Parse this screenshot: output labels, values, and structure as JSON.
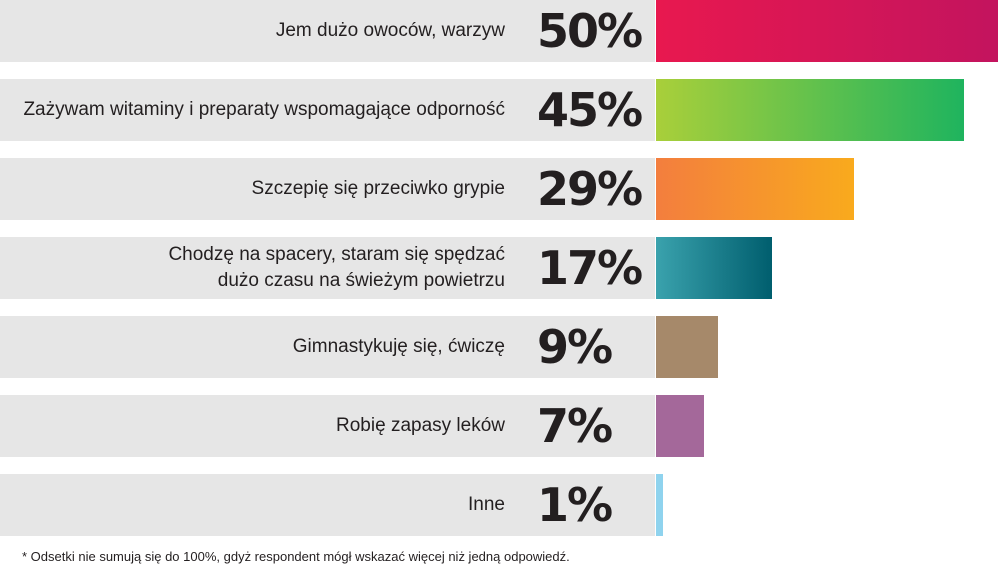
{
  "chart_data": {
    "type": "bar",
    "orientation": "horizontal",
    "categories": [
      "Jem dużo owoców, warzyw",
      "Zażywam witaminy i preparaty wspomagające odporność",
      "Szczepię się przeciwko grypie",
      "Chodzę na spacery, staram się spędzać\ndużo czasu na świeżym powietrzu",
      "Gimnastykuję się, ćwiczę",
      "Robię zapasy leków",
      "Inne"
    ],
    "values": [
      50,
      45,
      29,
      17,
      9,
      7,
      1
    ],
    "value_labels": [
      "50%",
      "45%",
      "29%",
      "17%",
      "9%",
      "7%",
      "1%"
    ],
    "unit": "%",
    "xlim": [
      0,
      58
    ],
    "grid": false,
    "legend": "none",
    "bar_colors": [
      [
        "#e8184f",
        "#c3145e"
      ],
      [
        "#a9cf3a",
        "#1fb45e"
      ],
      [
        "#f37e3e",
        "#f9aa1d"
      ],
      [
        "#3aa2ad",
        "#005e6e"
      ],
      [
        "#a6896a",
        "#a6896a"
      ],
      [
        "#a4689a",
        "#a4689a"
      ],
      [
        "#8fd3ee",
        "#8fd3ee"
      ]
    ]
  },
  "footnote": "* Odsetki nie sumują się do 100%, gdyż respondent mógł wskazać więcej niż jedną odpowiedź."
}
